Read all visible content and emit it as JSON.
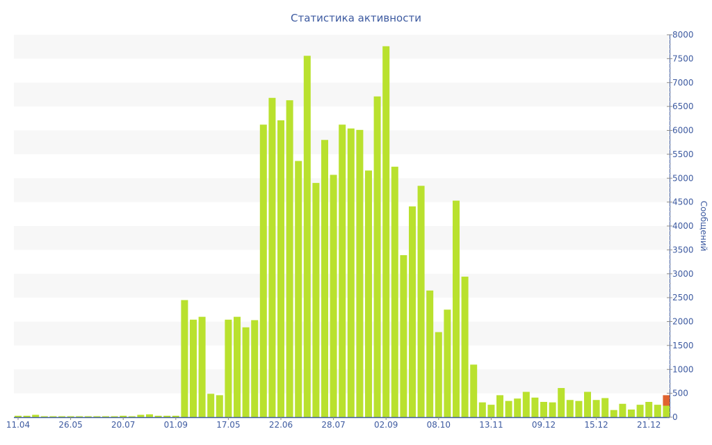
{
  "chart_data": {
    "type": "bar",
    "title": "Статистика активности",
    "ylabel": "Сообщений",
    "ylim": [
      0,
      8000
    ],
    "yticks": [
      0,
      500,
      1000,
      1500,
      2000,
      2500,
      3000,
      3500,
      4000,
      4500,
      5000,
      5500,
      6000,
      6500,
      7000,
      7500,
      8000
    ],
    "xtick_labels": [
      {
        "index": 0,
        "label": "11.04"
      },
      {
        "index": 6,
        "label": "26.05"
      },
      {
        "index": 12,
        "label": "20.07"
      },
      {
        "index": 18,
        "label": "01.09"
      },
      {
        "index": 24,
        "label": "17.05"
      },
      {
        "index": 30,
        "label": "22.06"
      },
      {
        "index": 36,
        "label": "28.07"
      },
      {
        "index": 42,
        "label": "02.09"
      },
      {
        "index": 48,
        "label": "08.10"
      },
      {
        "index": 54,
        "label": "13.11"
      },
      {
        "index": 60,
        "label": "09.12"
      },
      {
        "index": 66,
        "label": "15.12"
      },
      {
        "index": 72,
        "label": "21.12"
      }
    ],
    "values": [
      30,
      30,
      50,
      20,
      20,
      20,
      20,
      20,
      20,
      20,
      20,
      20,
      30,
      20,
      50,
      60,
      30,
      30,
      30,
      2450,
      2040,
      2100,
      490,
      460,
      2040,
      2100,
      1880,
      2030,
      6120,
      6680,
      6210,
      6630,
      5360,
      7560,
      4900,
      5800,
      5070,
      6120,
      6040,
      6010,
      5160,
      6710,
      7760,
      5240,
      3390,
      4410,
      4840,
      2650,
      1780,
      2250,
      4530,
      2940,
      1100,
      310,
      260,
      460,
      340,
      390,
      530,
      410,
      320,
      310,
      610,
      360,
      340,
      530,
      360,
      400,
      150,
      280,
      160,
      260,
      320,
      260,
      240
    ],
    "highlight": {
      "index": 74,
      "extra": 220
    },
    "colors": {
      "bar": "#b9e12e",
      "highlight": "#e0632f",
      "axis": "#3d5aa0",
      "band": "#f7f7f7"
    },
    "grid": "alternating-bands",
    "legend": "none"
  }
}
